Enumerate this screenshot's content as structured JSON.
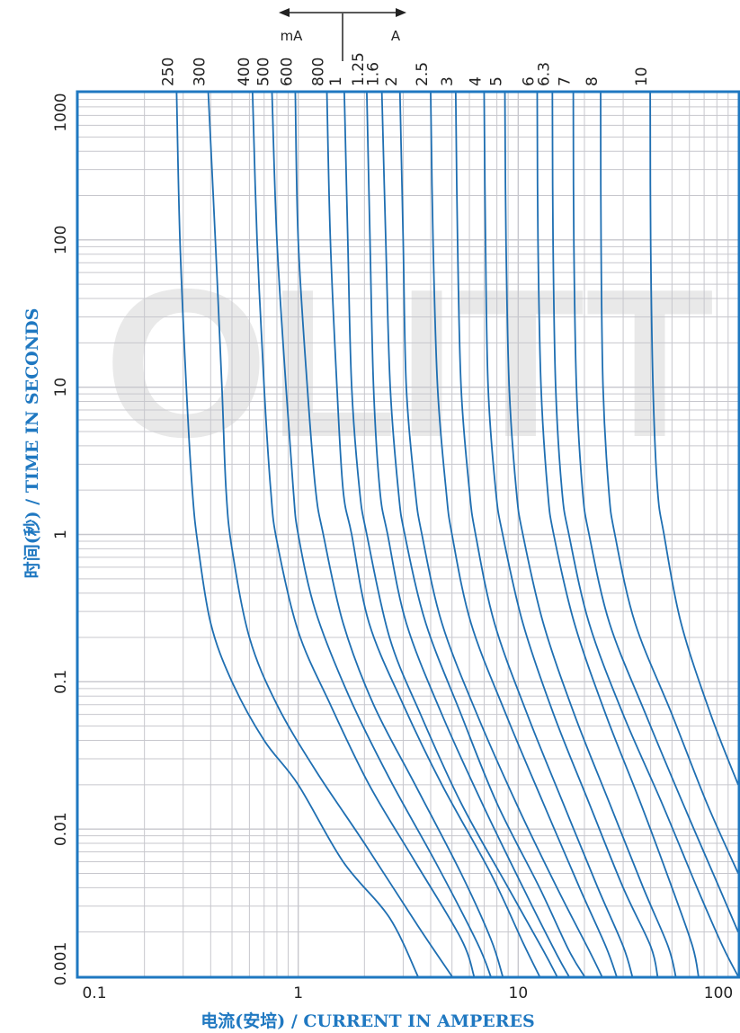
{
  "colors": {
    "curve": "#1f6fb2",
    "frame": "#1f78c1",
    "grid": "#c7c7cd",
    "axis_title": "#1f78c1",
    "watermark": "#dcdcdc"
  },
  "chart_data": {
    "type": "line",
    "xlabel": "电流(安培) / CURRENT IN AMPERES",
    "ylabel": "时间(秒) / TIME IN SECONDS",
    "x_scale": "log",
    "y_scale": "log",
    "xlim": [
      0.1,
      100
    ],
    "ylim": [
      0.001,
      1000
    ],
    "x_tick_labels": [
      "0.1",
      "1",
      "10",
      "100"
    ],
    "y_tick_labels": [
      "0.001",
      "0.01",
      "0.1",
      "1",
      "10",
      "100",
      "1000"
    ],
    "grid": true,
    "unit_markers": {
      "left": "mA",
      "right": "A"
    },
    "watermark_text": "OLITT",
    "series": [
      {
        "name": "250",
        "points": [
          [
            0.28,
            1000
          ],
          [
            0.29,
            100
          ],
          [
            0.31,
            10
          ],
          [
            0.33,
            2
          ],
          [
            0.35,
            0.85
          ],
          [
            0.4,
            0.25
          ],
          [
            0.5,
            0.1
          ],
          [
            0.7,
            0.04
          ],
          [
            1.0,
            0.02
          ],
          [
            1.6,
            0.006
          ],
          [
            2.6,
            0.0025
          ],
          [
            3.5,
            0.001
          ]
        ]
      },
      {
        "name": "300",
        "points": [
          [
            0.39,
            1000
          ],
          [
            0.42,
            100
          ],
          [
            0.45,
            10
          ],
          [
            0.47,
            2
          ],
          [
            0.5,
            0.8
          ],
          [
            0.6,
            0.2
          ],
          [
            0.8,
            0.07
          ],
          [
            1.2,
            0.025
          ],
          [
            2.0,
            0.008
          ],
          [
            3.5,
            0.0022
          ],
          [
            5.0,
            0.001
          ]
        ]
      },
      {
        "name": "400",
        "points": [
          [
            0.62,
            1000
          ],
          [
            0.65,
            100
          ],
          [
            0.7,
            10
          ],
          [
            0.75,
            2
          ],
          [
            0.8,
            0.9
          ],
          [
            1.0,
            0.22
          ],
          [
            1.4,
            0.07
          ],
          [
            2.1,
            0.02
          ],
          [
            3.4,
            0.006
          ],
          [
            5.5,
            0.0018
          ],
          [
            6.3,
            0.001
          ]
        ]
      },
      {
        "name": "500",
        "points": [
          [
            0.76,
            1000
          ],
          [
            0.8,
            100
          ],
          [
            0.88,
            10
          ],
          [
            0.95,
            2
          ],
          [
            1.0,
            1.0
          ],
          [
            1.2,
            0.3
          ],
          [
            1.7,
            0.08
          ],
          [
            2.6,
            0.022
          ],
          [
            4.2,
            0.006
          ],
          [
            6.5,
            0.0017
          ],
          [
            7.5,
            0.001
          ]
        ]
      },
      {
        "name": "600",
        "points": [
          [
            0.97,
            1000
          ],
          [
            1.0,
            100
          ],
          [
            1.1,
            10
          ],
          [
            1.2,
            2
          ],
          [
            1.3,
            1.0
          ],
          [
            1.6,
            0.25
          ],
          [
            2.2,
            0.07
          ],
          [
            3.4,
            0.02
          ],
          [
            5.5,
            0.005
          ],
          [
            7.5,
            0.0018
          ],
          [
            8.5,
            0.001
          ]
        ]
      },
      {
        "name": "800",
        "points": [
          [
            1.35,
            1000
          ],
          [
            1.4,
            100
          ],
          [
            1.5,
            10
          ],
          [
            1.6,
            2
          ],
          [
            1.75,
            1.0
          ],
          [
            2.1,
            0.25
          ],
          [
            3.0,
            0.07
          ],
          [
            4.5,
            0.02
          ],
          [
            7.5,
            0.005
          ],
          [
            10.5,
            0.0017
          ],
          [
            12.5,
            0.001
          ]
        ]
      },
      {
        "name": "1",
        "points": [
          [
            1.62,
            1000
          ],
          [
            1.68,
            100
          ],
          [
            1.75,
            10
          ],
          [
            1.9,
            2
          ],
          [
            2.05,
            1.0
          ],
          [
            2.6,
            0.2
          ],
          [
            3.6,
            0.06
          ],
          [
            5.5,
            0.015
          ],
          [
            9.0,
            0.004
          ],
          [
            13,
            0.0015
          ],
          [
            15,
            0.001
          ]
        ]
      },
      {
        "name": "1.25",
        "points": [
          [
            2.05,
            1000
          ],
          [
            2.12,
            100
          ],
          [
            2.2,
            10
          ],
          [
            2.35,
            2
          ],
          [
            2.55,
            1.0
          ],
          [
            3.1,
            0.25
          ],
          [
            4.5,
            0.06
          ],
          [
            7,
            0.014
          ],
          [
            11,
            0.0035
          ],
          [
            15,
            0.0014
          ],
          [
            17,
            0.001
          ]
        ]
      },
      {
        "name": "1.6",
        "points": [
          [
            2.4,
            1000
          ],
          [
            2.5,
            100
          ],
          [
            2.62,
            10
          ],
          [
            2.85,
            2
          ],
          [
            3.05,
            1.0
          ],
          [
            3.8,
            0.25
          ],
          [
            5.5,
            0.06
          ],
          [
            8,
            0.015
          ],
          [
            12.5,
            0.004
          ],
          [
            17,
            0.0015
          ],
          [
            20,
            0.001
          ]
        ]
      },
      {
        "name": "2",
        "points": [
          [
            2.9,
            1000
          ],
          [
            3.0,
            100
          ],
          [
            3.1,
            10
          ],
          [
            3.4,
            2
          ],
          [
            3.65,
            1.0
          ],
          [
            4.5,
            0.25
          ],
          [
            6.5,
            0.06
          ],
          [
            10,
            0.014
          ],
          [
            15,
            0.004
          ],
          [
            21,
            0.0015
          ],
          [
            24,
            0.001
          ]
        ]
      },
      {
        "name": "2.5",
        "points": [
          [
            4.0,
            1000
          ],
          [
            4.1,
            100
          ],
          [
            4.3,
            10
          ],
          [
            4.7,
            2
          ],
          [
            5.0,
            1.0
          ],
          [
            6.1,
            0.25
          ],
          [
            8.8,
            0.06
          ],
          [
            13,
            0.015
          ],
          [
            19,
            0.004
          ],
          [
            25,
            0.0016
          ],
          [
            28,
            0.001
          ]
        ]
      },
      {
        "name": "3",
        "points": [
          [
            5.2,
            1000
          ],
          [
            5.3,
            100
          ],
          [
            5.5,
            10
          ],
          [
            6.0,
            2
          ],
          [
            6.4,
            1.0
          ],
          [
            7.8,
            0.25
          ],
          [
            11,
            0.06
          ],
          [
            16,
            0.015
          ],
          [
            23,
            0.004
          ],
          [
            30,
            0.0016
          ],
          [
            33,
            0.001
          ]
        ]
      },
      {
        "name": "4",
        "points": [
          [
            7.0,
            1000
          ],
          [
            7.1,
            100
          ],
          [
            7.3,
            10
          ],
          [
            7.9,
            2
          ],
          [
            8.5,
            1.0
          ],
          [
            10.5,
            0.25
          ],
          [
            14.5,
            0.06
          ],
          [
            21,
            0.015
          ],
          [
            30,
            0.004
          ],
          [
            40,
            0.0016
          ],
          [
            43,
            0.001
          ]
        ]
      },
      {
        "name": "5",
        "points": [
          [
            8.7,
            1000
          ],
          [
            8.8,
            100
          ],
          [
            9.1,
            10
          ],
          [
            9.8,
            2
          ],
          [
            10.5,
            1.0
          ],
          [
            13,
            0.25
          ],
          [
            18,
            0.06
          ],
          [
            26,
            0.015
          ],
          [
            37,
            0.004
          ],
          [
            48,
            0.0016
          ],
          [
            52,
            0.001
          ]
        ]
      },
      {
        "name": "6",
        "points": [
          [
            12.2,
            1000
          ],
          [
            12.3,
            100
          ],
          [
            12.7,
            10
          ],
          [
            13.6,
            2
          ],
          [
            14.5,
            1.0
          ],
          [
            18,
            0.25
          ],
          [
            25,
            0.06
          ],
          [
            36,
            0.015
          ],
          [
            50,
            0.004
          ],
          [
            62,
            0.0016
          ],
          [
            66,
            0.001
          ]
        ]
      },
      {
        "name": "6.3",
        "points": [
          [
            14.3,
            1000
          ],
          [
            14.4,
            100
          ],
          [
            14.8,
            10
          ],
          [
            15.8,
            2
          ],
          [
            17,
            1.0
          ],
          [
            21,
            0.25
          ],
          [
            30,
            0.06
          ],
          [
            45,
            0.015
          ],
          [
            65,
            0.004
          ],
          [
            85,
            0.0016
          ],
          [
            100,
            0.001
          ]
        ]
      },
      {
        "name": "7",
        "points": [
          [
            17.8,
            1000
          ],
          [
            17.9,
            100
          ],
          [
            18.4,
            10
          ],
          [
            19.6,
            2
          ],
          [
            21,
            1.0
          ],
          [
            26,
            0.25
          ],
          [
            38,
            0.06
          ],
          [
            56,
            0.015
          ],
          [
            82,
            0.004
          ],
          [
            100,
            0.002
          ]
        ]
      },
      {
        "name": "8",
        "points": [
          [
            23.7,
            1000
          ],
          [
            23.8,
            100
          ],
          [
            24.3,
            10
          ],
          [
            25.8,
            2
          ],
          [
            27.5,
            1.0
          ],
          [
            34,
            0.25
          ],
          [
            50,
            0.06
          ],
          [
            72,
            0.015
          ],
          [
            100,
            0.005
          ]
        ]
      },
      {
        "name": "10",
        "points": [
          [
            39.8,
            1000
          ],
          [
            40,
            100
          ],
          [
            41,
            10
          ],
          [
            43,
            2
          ],
          [
            46,
            1.0
          ],
          [
            55,
            0.25
          ],
          [
            75,
            0.06
          ],
          [
            100,
            0.02
          ]
        ]
      }
    ]
  }
}
